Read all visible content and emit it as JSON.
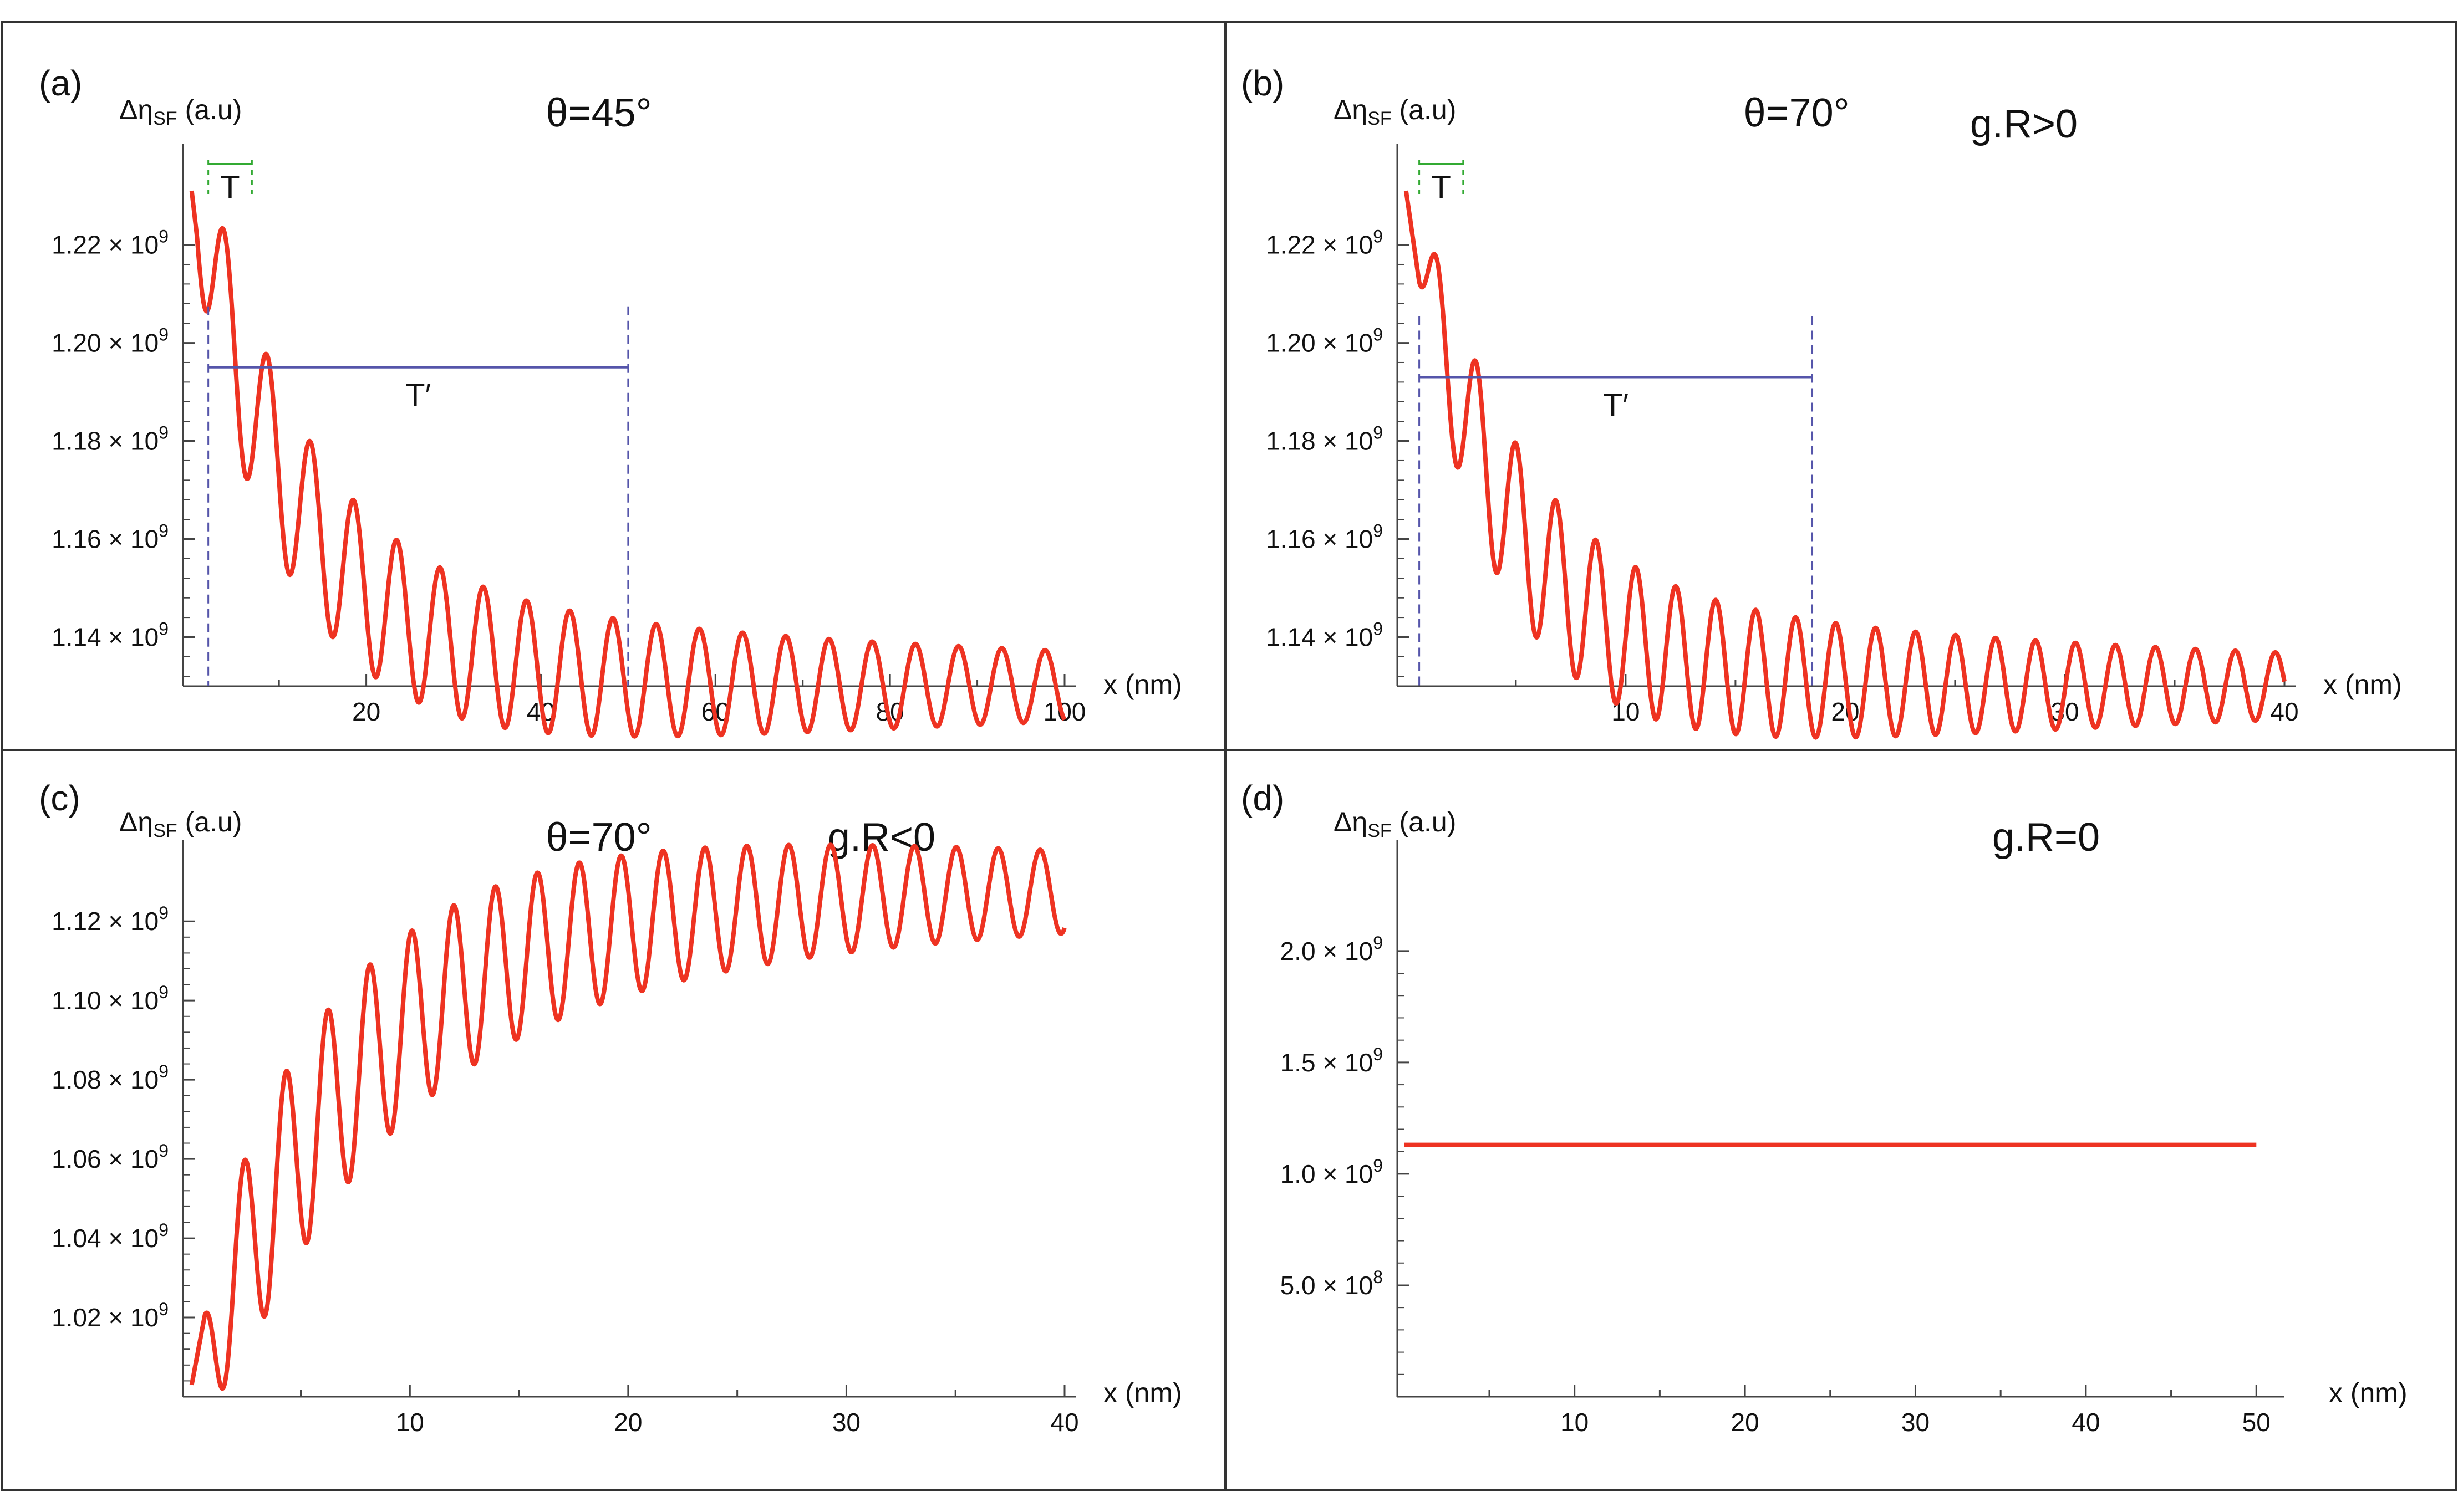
{
  "colors": {
    "curve": "#ee3322",
    "frame": "#333333",
    "axis": "#444444",
    "period_T": "#33aa33",
    "period_Tprime": "#5555aa"
  },
  "y_label": {
    "prefix": "Δη",
    "sub": "SF",
    "suffix": " (a.u)"
  },
  "x_label": "x (nm)",
  "chart_data": [
    {
      "panel": "(a)",
      "type": "line",
      "theta": "θ=45°",
      "condition": "",
      "xlabel": "x (nm)",
      "ylabel": "ΔηSF (a.u)",
      "xlim": [
        -1,
        100
      ],
      "ylim": [
        1130000000.0,
        1236000000.0
      ],
      "x_ticks": [
        20,
        40,
        60,
        80,
        100
      ],
      "y_ticks": [
        {
          "value": 1140000000.0,
          "mant": "1.14",
          "exp": "9"
        },
        {
          "value": 1160000000.0,
          "mant": "1.16",
          "exp": "9"
        },
        {
          "value": 1180000000.0,
          "mant": "1.18",
          "exp": "9"
        },
        {
          "value": 1200000000.0,
          "mant": "1.20",
          "exp": "9"
        },
        {
          "value": 1220000000.0,
          "mant": "1.22",
          "exp": "9"
        }
      ],
      "curve": {
        "kind": "decay",
        "start": 1232000000.0,
        "end": 1130000000.0,
        "decay_scale": 12,
        "period": 4.95,
        "amp0": 19500000.0,
        "amp_decay": 100,
        "y_at_x0": 1231000000.0
      },
      "markers": {
        "T": {
          "label": "T",
          "x1": 1.9,
          "x2": 6.9
        },
        "Tprime": {
          "label": "T′",
          "x1": 1.9,
          "x2": 50,
          "level": 1195000000.0
        }
      }
    },
    {
      "panel": "(b)",
      "type": "line",
      "theta": "θ=70°",
      "condition": "g.R>0",
      "xlabel": "x (nm)",
      "ylabel": "ΔηSF (a.u)",
      "xlim": [
        -0.4,
        40
      ],
      "ylim": [
        1130000000.0,
        1236000000.0
      ],
      "x_ticks": [
        10,
        20,
        30,
        40
      ],
      "y_ticks": [
        {
          "value": 1140000000.0,
          "mant": "1.14",
          "exp": "9"
        },
        {
          "value": 1160000000.0,
          "mant": "1.16",
          "exp": "9"
        },
        {
          "value": 1180000000.0,
          "mant": "1.18",
          "exp": "9"
        },
        {
          "value": 1200000000.0,
          "mant": "1.20",
          "exp": "9"
        },
        {
          "value": 1220000000.0,
          "mant": "1.22",
          "exp": "9"
        }
      ],
      "curve": {
        "kind": "decay",
        "start": 1232000000.0,
        "end": 1130000000.0,
        "decay_scale": 4.4,
        "period": 1.82,
        "amp0": 19500000.0,
        "amp_decay": 38,
        "y_at_x0": 1231000000.0
      },
      "markers": {
        "T": {
          "label": "T",
          "x1": 0.6,
          "x2": 2.6
        },
        "Tprime": {
          "label": "T′",
          "x1": 0.6,
          "x2": 18.5,
          "level": 1193000000.0
        }
      }
    },
    {
      "panel": "(c)",
      "type": "line",
      "theta": "θ=70°",
      "condition": "g.R<0",
      "xlabel": "x (nm)",
      "ylabel": "ΔηSF (a.u)",
      "xlim": [
        -0.4,
        40
      ],
      "ylim": [
        1000000000.0,
        1135000000.0
      ],
      "x_ticks": [
        10,
        20,
        30,
        40
      ],
      "y_ticks": [
        {
          "value": 1020000000.0,
          "mant": "1.02",
          "exp": "9"
        },
        {
          "value": 1040000000.0,
          "mant": "1.04",
          "exp": "9"
        },
        {
          "value": 1060000000.0,
          "mant": "1.06",
          "exp": "9"
        },
        {
          "value": 1080000000.0,
          "mant": "1.08",
          "exp": "9"
        },
        {
          "value": 1100000000.0,
          "mant": "1.10",
          "exp": "9"
        },
        {
          "value": 1120000000.0,
          "mant": "1.12",
          "exp": "9"
        }
      ],
      "curve": {
        "kind": "grow",
        "start": 1000000000.0,
        "end": 1128000000.0,
        "decay_scale": 7.5,
        "period": 1.92,
        "amp0": 30000000.0,
        "amp_decay": 38,
        "y_at_x0": 1003000000.0
      }
    },
    {
      "panel": "(d)",
      "type": "line",
      "theta": "",
      "condition": "g.R=0",
      "xlabel": "x (nm)",
      "ylabel": "ΔηSF (a.u)",
      "xlim": [
        -0.4,
        51
      ],
      "ylim": [
        0,
        2400000000.0
      ],
      "x_ticks": [
        10,
        20,
        30,
        40,
        50
      ],
      "y_ticks": [
        {
          "value": 500000000.0,
          "mant": "5.0",
          "exp": "8"
        },
        {
          "value": 1000000000.0,
          "mant": "1.0",
          "exp": "9"
        },
        {
          "value": 1500000000.0,
          "mant": "1.5",
          "exp": "9"
        },
        {
          "value": 2000000000.0,
          "mant": "2.0",
          "exp": "9"
        }
      ],
      "curve": {
        "kind": "constant",
        "value": 1130000000.0,
        "x_end": 50
      }
    }
  ]
}
